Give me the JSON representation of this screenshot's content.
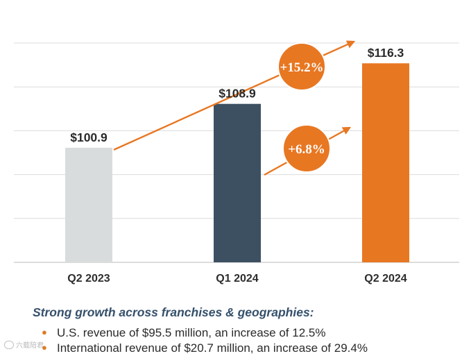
{
  "chart_data": {
    "type": "bar",
    "categories": [
      "Q2 2023",
      "Q1 2024",
      "Q2 2024"
    ],
    "values": [
      100.9,
      108.9,
      116.3
    ],
    "value_labels": [
      "$100.9",
      "$108.9",
      "$116.3"
    ],
    "bar_colors": [
      "#d9dcdc",
      "#3c5061",
      "#e87722"
    ],
    "ylim": [
      80,
      120
    ],
    "grid": true,
    "annotations": [
      {
        "text": "+15.2%",
        "from": "Q2 2023",
        "to": "Q2 2024"
      },
      {
        "text": "+6.8%",
        "from": "Q1 2024",
        "to": "Q2 2024"
      }
    ],
    "annotation_color": "#e87722"
  },
  "notes": {
    "heading": "Strong growth across franchises & geographies:",
    "bullets": [
      "U.S. revenue of $95.5 million, an increase of 12.5%",
      "International revenue of $20.7 million, an increase of 29.4%"
    ],
    "heading_color": "#35506b",
    "bullet_color": "#e07a24"
  },
  "watermark": {
    "text": "六载陪君"
  }
}
